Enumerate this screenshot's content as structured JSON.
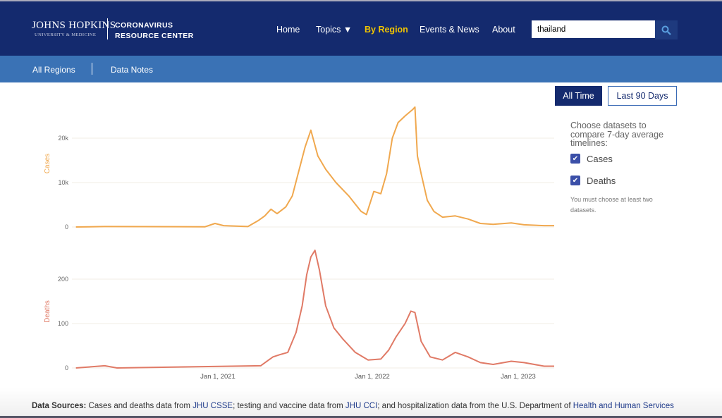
{
  "header": {
    "logo_line1": "JOHNS HOPKINS",
    "logo_line2": "UNIVERSITY & MEDICINE",
    "site_title_1": "CORONAVIRUS",
    "site_title_2": "RESOURCE CENTER",
    "nav": [
      {
        "label": "Home"
      },
      {
        "label": "Topics ▼"
      },
      {
        "label": "By Region",
        "active": true
      },
      {
        "label": "Events & News"
      },
      {
        "label": "About"
      }
    ],
    "search_value": "thailand",
    "search_icon": "search-icon"
  },
  "subnav": {
    "items": [
      {
        "label": "All Regions"
      },
      {
        "label": "Data Notes"
      }
    ]
  },
  "controls": {
    "all_time": "All Time",
    "last_90": "Last 90 Days",
    "choose_text": "Choose datasets to compare 7-day average timelines:",
    "checkboxes": [
      {
        "label": "Cases",
        "checked": true
      },
      {
        "label": "Deaths",
        "checked": true
      }
    ],
    "note": "You must choose at least two datasets."
  },
  "chart_data": [
    {
      "type": "line",
      "ylabel": "Cases",
      "color": "#f0a84e",
      "yticks": [
        "0",
        "10k",
        "20k"
      ],
      "ytick_values": [
        0,
        10000,
        20000
      ],
      "grid": true,
      "x": [
        "2020-01-22",
        "2020-04-01",
        "2020-12-01",
        "2020-12-25",
        "2021-01-15",
        "2021-03-15",
        "2021-04-10",
        "2021-04-25",
        "2021-05-10",
        "2021-05-25",
        "2021-06-15",
        "2021-07-01",
        "2021-07-15",
        "2021-08-01",
        "2021-08-15",
        "2021-09-01",
        "2021-09-20",
        "2021-10-15",
        "2021-11-15",
        "2021-12-15",
        "2021-12-28",
        "2022-01-15",
        "2022-02-01",
        "2022-02-15",
        "2022-03-01",
        "2022-03-15",
        "2022-04-01",
        "2022-04-20",
        "2022-04-25",
        "2022-05-01",
        "2022-05-10",
        "2022-05-25",
        "2022-06-10",
        "2022-07-01",
        "2022-08-01",
        "2022-09-01",
        "2022-10-01",
        "2022-11-01",
        "2022-12-15",
        "2023-01-15",
        "2023-03-05"
      ],
      "values": [
        0,
        100,
        50,
        800,
        300,
        100,
        1500,
        2500,
        4000,
        3000,
        4500,
        7000,
        12000,
        18000,
        21800,
        16000,
        13000,
        10000,
        7000,
        3500,
        2800,
        8000,
        7500,
        12000,
        20000,
        23500,
        25000,
        26500,
        27000,
        16000,
        12000,
        6000,
        3500,
        2200,
        2500,
        1800,
        800,
        600,
        900,
        500,
        300
      ]
    },
    {
      "type": "line",
      "ylabel": "Deaths",
      "color": "#e07a66",
      "yticks": [
        "0",
        "100",
        "200"
      ],
      "ytick_values": [
        0,
        100,
        200
      ],
      "grid": true,
      "xticks": [
        "Jan 1, 2021",
        "Jan 1, 2022",
        "Jan 1, 2023"
      ],
      "x": [
        "2020-01-22",
        "2020-04-01",
        "2020-05-01",
        "2021-04-15",
        "2021-05-15",
        "2021-06-01",
        "2021-06-20",
        "2021-07-10",
        "2021-07-25",
        "2021-08-05",
        "2021-08-15",
        "2021-08-25",
        "2021-09-05",
        "2021-09-20",
        "2021-10-10",
        "2021-11-01",
        "2021-12-01",
        "2022-01-01",
        "2022-02-01",
        "2022-02-20",
        "2022-03-10",
        "2022-04-01",
        "2022-04-15",
        "2022-04-25",
        "2022-05-10",
        "2022-06-01",
        "2022-07-01",
        "2022-08-01",
        "2022-09-01",
        "2022-10-01",
        "2022-11-01",
        "2022-12-15",
        "2023-01-15",
        "2023-03-05"
      ],
      "values": [
        0,
        5,
        0,
        5,
        25,
        30,
        35,
        80,
        140,
        210,
        250,
        265,
        220,
        140,
        90,
        65,
        35,
        18,
        20,
        40,
        70,
        100,
        128,
        125,
        60,
        25,
        18,
        35,
        25,
        12,
        8,
        15,
        12,
        4
      ]
    }
  ],
  "footer": {
    "label": "Data Sources:",
    "t1": " Cases and deaths data from ",
    "l1": "JHU CSSE",
    "t2": "; testing and vaccine data from ",
    "l2": "JHU CCI",
    "t3": "; and hospitalization data from the U.S. Department of ",
    "l3": "Health and Human Services"
  }
}
